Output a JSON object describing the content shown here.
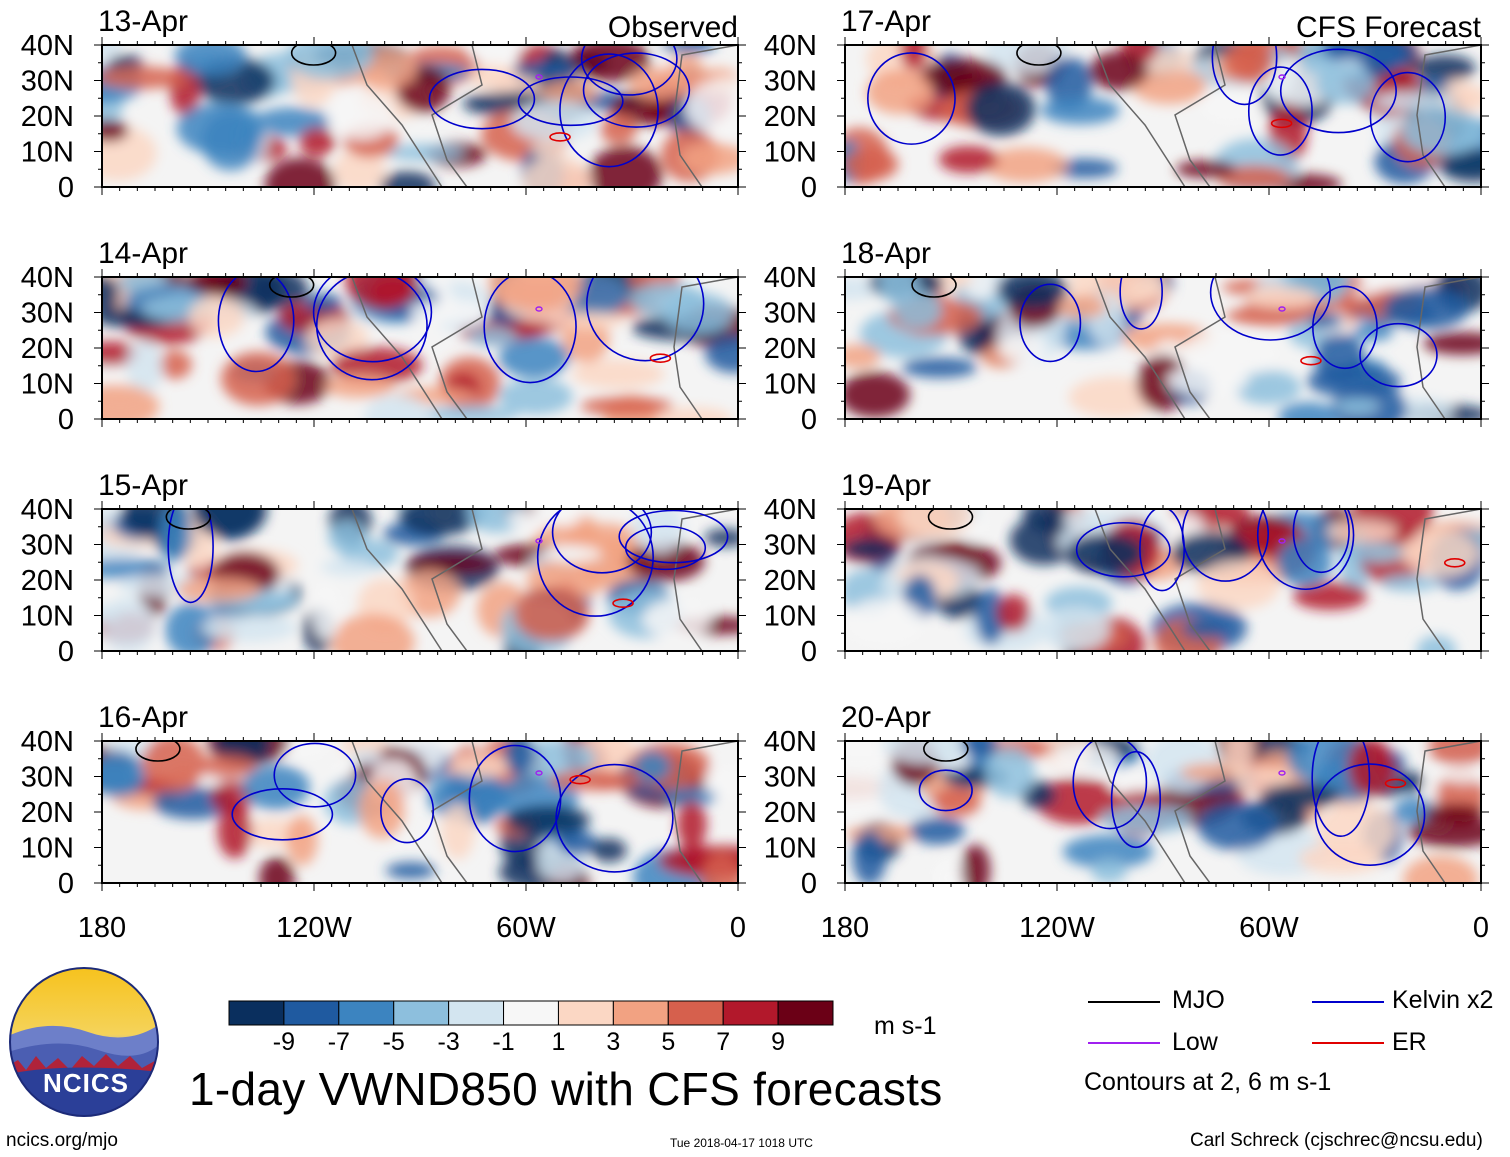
{
  "chart_data": {
    "type": "heatmap",
    "title": "1-day VWND850 with CFS forecasts",
    "variable": "VWND850",
    "units": "m s-1",
    "contour_note": "Contours at 2, 6 m s-1",
    "panels_observed_label": "Observed",
    "panels_forecast_label": "CFS Forecast",
    "lat_ticks": [
      "40N",
      "30N",
      "20N",
      "10N",
      "0"
    ],
    "lon_ticks": [
      "180",
      "120W",
      "60W",
      "0"
    ],
    "lat_range": [
      0,
      40
    ],
    "lon_range": [
      -180,
      0
    ],
    "panels": [
      {
        "date": "13-Apr",
        "column": "Observed"
      },
      {
        "date": "14-Apr",
        "column": "Observed"
      },
      {
        "date": "15-Apr",
        "column": "Observed"
      },
      {
        "date": "16-Apr",
        "column": "Observed"
      },
      {
        "date": "17-Apr",
        "column": "CFS Forecast"
      },
      {
        "date": "18-Apr",
        "column": "CFS Forecast"
      },
      {
        "date": "19-Apr",
        "column": "CFS Forecast"
      },
      {
        "date": "20-Apr",
        "column": "CFS Forecast"
      }
    ],
    "colorbar": {
      "ticks": [
        "-9",
        "-7",
        "-5",
        "-3",
        "-1",
        "1",
        "3",
        "5",
        "7",
        "9"
      ],
      "colors": [
        "#0a2f5e",
        "#1f5aa0",
        "#3c84c0",
        "#8dbfdd",
        "#d3e5f0",
        "#f7f7f7",
        "#fbd7c4",
        "#f2a282",
        "#d6604d",
        "#b2182b",
        "#6b0016"
      ]
    },
    "legend": [
      {
        "name": "MJO",
        "color": "#000000"
      },
      {
        "name": "Kelvin x2",
        "color": "#0000cc"
      },
      {
        "name": "Low",
        "color": "#a020f0"
      },
      {
        "name": "ER",
        "color": "#e00000"
      }
    ]
  },
  "footer": {
    "logo_text": "NCICS",
    "site": "ncics.org/mjo",
    "timestamp": "Tue 2018-04-17 1018 UTC",
    "author": "Carl Schreck (cjschrec@ncsu.edu)"
  }
}
